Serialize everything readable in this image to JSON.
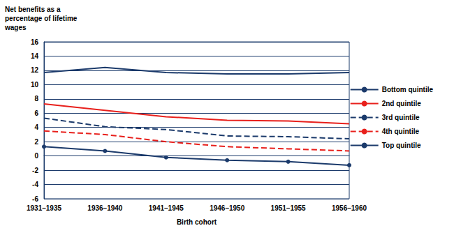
{
  "chart_data": {
    "type": "line",
    "title": "Net benefits as a percentage of lifetime wages",
    "x_label": "Birth cohort",
    "categories": [
      "1931–1935",
      "1936–1940",
      "1941–1945",
      "1946–1950",
      "1951–1955",
      "1956–1960"
    ],
    "series": [
      {
        "name": "Bottom quintile",
        "color": "#1b3a6b",
        "line_style": "solid",
        "marker": "none",
        "values": [
          11.7,
          12.4,
          11.7,
          11.5,
          11.5,
          11.7
        ]
      },
      {
        "name": "2nd quintile",
        "color": "#e8201c",
        "line_style": "solid",
        "marker": "none",
        "values": [
          7.3,
          6.4,
          5.5,
          5.0,
          4.9,
          4.5
        ]
      },
      {
        "name": "3rd quintile",
        "color": "#1b3a6b",
        "line_style": "dashed",
        "marker": "none",
        "values": [
          5.3,
          4.1,
          3.7,
          2.8,
          2.7,
          2.4
        ]
      },
      {
        "name": "4th quintile",
        "color": "#e8201c",
        "line_style": "dashed",
        "marker": "none",
        "values": [
          3.5,
          3.0,
          2.0,
          1.3,
          1.0,
          0.7
        ]
      },
      {
        "name": "Top quintile",
        "color": "#1b3a6b",
        "line_style": "solid",
        "marker": "circle",
        "values": [
          1.3,
          0.7,
          -0.2,
          -0.6,
          -0.8,
          -1.3
        ]
      }
    ],
    "ylim": [
      -6,
      16
    ],
    "yticks": [
      -6,
      -4,
      -2,
      0,
      2,
      4,
      6,
      8,
      10,
      12,
      14,
      16
    ],
    "grid": true,
    "legend": "right"
  }
}
